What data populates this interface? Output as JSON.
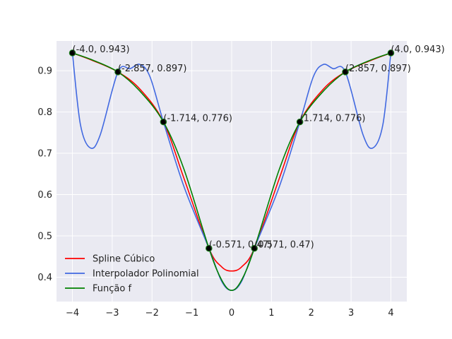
{
  "chart_data": {
    "type": "line",
    "title": "",
    "xlabel": "",
    "ylabel": "",
    "xlim": [
      -4.4,
      4.4
    ],
    "ylim": [
      0.341,
      0.972
    ],
    "grid": true,
    "legend_position": "lower-left",
    "xticks": [
      -4,
      -3,
      -2,
      -1,
      0,
      1,
      2,
      3,
      4
    ],
    "yticks": [
      0.4,
      0.5,
      0.6,
      0.7,
      0.8,
      0.9
    ],
    "xtick_labels": [
      "−4",
      "−3",
      "−2",
      "−1",
      "0",
      "1",
      "2",
      "3",
      "4"
    ],
    "ytick_labels": [
      "0.4",
      "0.5",
      "0.6",
      "0.7",
      "0.8",
      "0.9"
    ],
    "series": [
      {
        "name": "Spline Cúbico",
        "color": "#ff0000",
        "x": [
          -4.0,
          -3.5,
          -2.857,
          -2.3,
          -1.714,
          -1.2,
          -0.571,
          -0.25,
          0.0,
          0.25,
          0.571,
          1.2,
          1.714,
          2.3,
          2.857,
          3.5,
          4.0
        ],
        "values": [
          0.943,
          0.925,
          0.897,
          0.855,
          0.776,
          0.64,
          0.47,
          0.425,
          0.415,
          0.425,
          0.47,
          0.64,
          0.776,
          0.855,
          0.897,
          0.925,
          0.943
        ]
      },
      {
        "name": "Interpolador Polinomial",
        "color": "#4169e1",
        "x": [
          -4.0,
          -3.8,
          -3.55,
          -3.3,
          -2.857,
          -2.55,
          -2.3,
          -2.05,
          -1.714,
          -1.2,
          -0.571,
          -0.25,
          0.0,
          0.25,
          0.571,
          1.2,
          1.714,
          2.05,
          2.3,
          2.55,
          2.857,
          3.3,
          3.55,
          3.8,
          4.0
        ],
        "values": [
          0.943,
          0.77,
          0.713,
          0.745,
          0.897,
          0.905,
          0.915,
          0.885,
          0.776,
          0.62,
          0.47,
          0.39,
          0.368,
          0.39,
          0.47,
          0.62,
          0.776,
          0.885,
          0.915,
          0.905,
          0.897,
          0.745,
          0.713,
          0.77,
          0.943
        ]
      },
      {
        "name": "Função f",
        "color": "#008000",
        "x": [
          -4.0,
          -3.5,
          -2.857,
          -2.3,
          -1.714,
          -1.2,
          -0.571,
          -0.25,
          0.0,
          0.25,
          0.571,
          1.2,
          1.714,
          2.3,
          2.857,
          3.5,
          4.0
        ],
        "values": [
          0.943,
          0.926,
          0.897,
          0.85,
          0.776,
          0.662,
          0.47,
          0.393,
          0.368,
          0.393,
          0.47,
          0.662,
          0.776,
          0.85,
          0.897,
          0.926,
          0.943
        ]
      }
    ],
    "points": [
      {
        "x": -4.0,
        "y": 0.943,
        "label": "(-4.0, 0.943)"
      },
      {
        "x": -2.857,
        "y": 0.897,
        "label": "(-2.857, 0.897)"
      },
      {
        "x": -1.714,
        "y": 0.776,
        "label": "(-1.714, 0.776)"
      },
      {
        "x": -0.571,
        "y": 0.47,
        "label": "(-0.571, 0.47)"
      },
      {
        "x": 0.571,
        "y": 0.47,
        "label": "(0.571, 0.47)"
      },
      {
        "x": 1.714,
        "y": 0.776,
        "label": "(1.714, 0.776)"
      },
      {
        "x": 2.857,
        "y": 0.897,
        "label": "(2.857, 0.897)"
      },
      {
        "x": 4.0,
        "y": 0.943,
        "label": "(4.0, 0.943)"
      }
    ],
    "style": {
      "background": "#eaeaf2",
      "grid_color": "#ffffff",
      "point_color": "#000000",
      "point_edge": "#228b22"
    }
  }
}
